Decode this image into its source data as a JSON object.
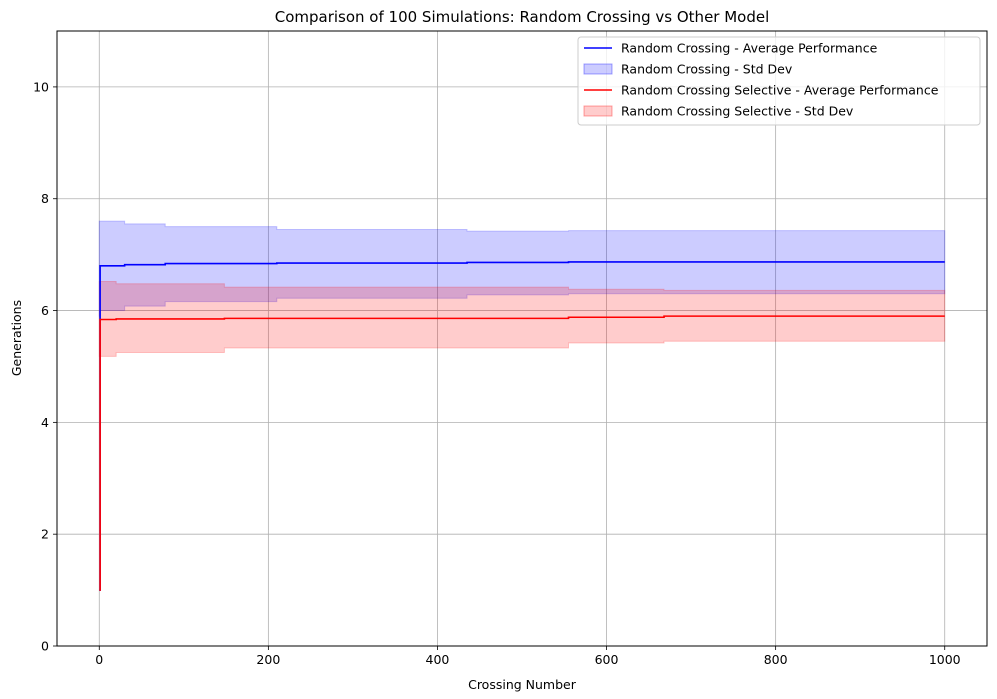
{
  "chart_data": {
    "type": "line",
    "title": "Comparison of 100 Simulations: Random Crossing vs Other Model",
    "xlabel": "Crossing Number",
    "ylabel": "Generations",
    "xlim": [
      -50,
      1050
    ],
    "ylim": [
      0,
      11
    ],
    "xticks": [
      0,
      200,
      400,
      600,
      800,
      1000
    ],
    "yticks": [
      0,
      2,
      4,
      6,
      8,
      10
    ],
    "xtick_labels": [
      "0",
      "200",
      "400",
      "600",
      "800",
      "1000"
    ],
    "ytick_labels": [
      "0",
      "2",
      "4",
      "6",
      "8",
      "10"
    ],
    "grid": true,
    "legend_position": "top-right",
    "series": [
      {
        "name": "Random Crossing - Average Performance",
        "color": "#0000ff",
        "x": [
          0,
          1,
          30,
          78,
          210,
          435,
          555,
          1000
        ],
        "y": [
          1.0,
          6.8,
          6.82,
          6.84,
          6.85,
          6.86,
          6.87,
          6.87
        ],
        "band": {
          "name": "Random Crossing - Std Dev",
          "fill": "#0000ff",
          "alpha": 0.2,
          "upper": [
            7.6,
            7.6,
            7.55,
            7.5,
            7.45,
            7.42,
            7.43,
            7.43
          ],
          "lower": [
            5.9,
            6.0,
            6.08,
            6.16,
            6.22,
            6.28,
            6.3,
            6.3
          ]
        }
      },
      {
        "name": "Random Crossing Selective - Average Performance",
        "color": "#ff0000",
        "x": [
          0,
          1,
          20,
          148,
          555,
          668,
          1000
        ],
        "y": [
          1.0,
          5.84,
          5.85,
          5.86,
          5.88,
          5.9,
          5.9
        ],
        "band": {
          "name": "Random Crossing Selective - Std Dev",
          "fill": "#ff0000",
          "alpha": 0.2,
          "upper": [
            6.52,
            6.52,
            6.48,
            6.42,
            6.38,
            6.36,
            6.36
          ],
          "lower": [
            5.18,
            5.18,
            5.25,
            5.33,
            5.42,
            5.45,
            5.45
          ]
        }
      }
    ]
  }
}
